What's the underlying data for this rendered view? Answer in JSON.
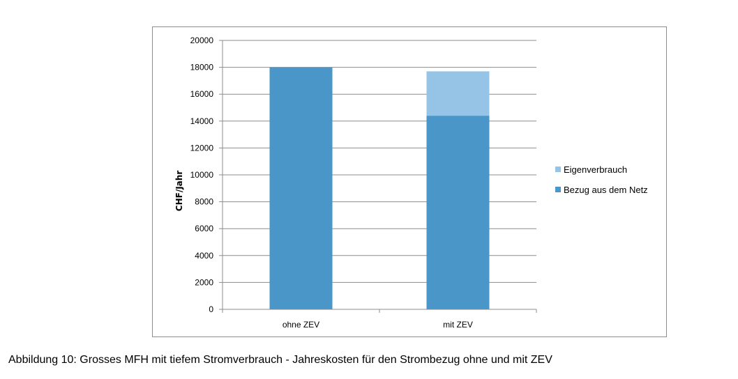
{
  "chart_data": {
    "type": "bar",
    "stacked": true,
    "categories": [
      "ohne ZEV",
      "mit ZEV"
    ],
    "series": [
      {
        "name": "Bezug aus dem Netz",
        "values": [
          18000,
          14400
        ],
        "color": "#4a96c8"
      },
      {
        "name": "Eigenverbrauch",
        "values": [
          0,
          3300
        ],
        "color": "#95c4e6"
      }
    ],
    "ylabel": "CHF/Jahr",
    "ylim": [
      0,
      20000
    ],
    "yticks": [
      0,
      2000,
      4000,
      6000,
      8000,
      10000,
      12000,
      14000,
      16000,
      18000,
      20000
    ],
    "grid": true,
    "legend": {
      "placement": "right",
      "entries": [
        "Eigenverbrauch",
        "Bezug aus dem Netz"
      ]
    }
  },
  "caption": "Abbildung 10: Grosses MFH mit tiefem Stromverbrauch - Jahreskosten für den Strombezug ohne und mit ZEV"
}
